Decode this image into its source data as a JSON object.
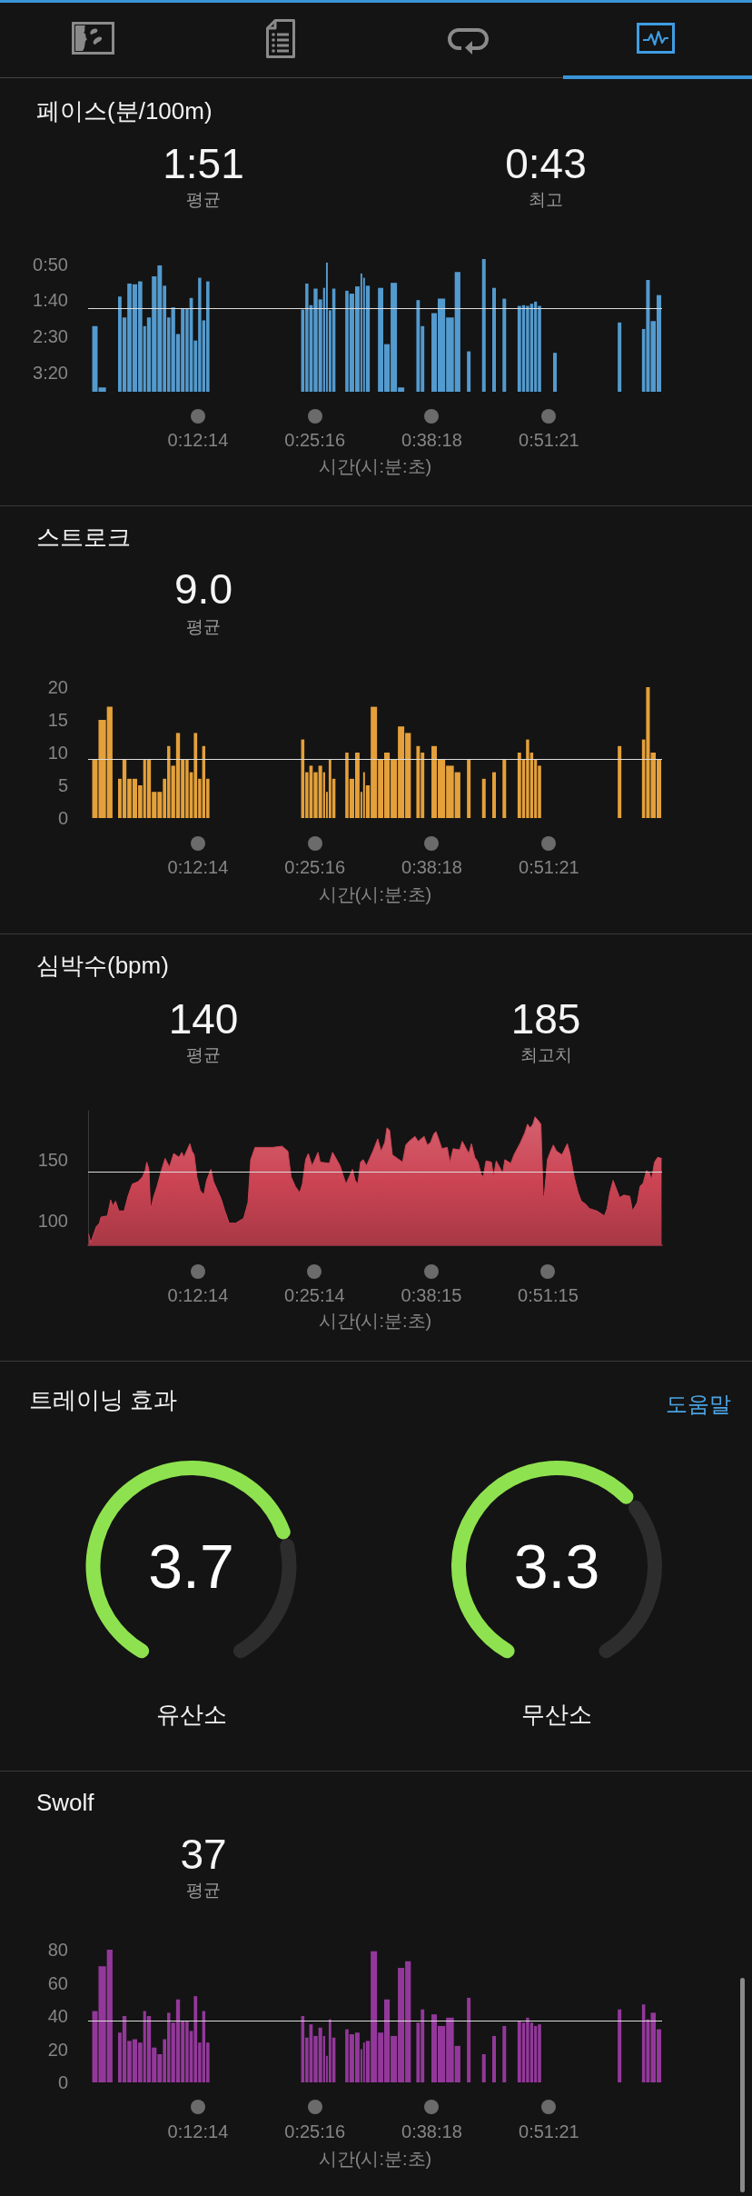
{
  "chart_data": [
    {
      "type": "bar",
      "title": "페이스(분/100m)",
      "xlabel": "시간(시:분:초)",
      "annotations": [
        "1:51",
        "평균",
        "0:43",
        "최고"
      ],
      "color": "#539ace",
      "x": [
        0.011,
        0.026,
        0.042,
        0.059,
        0.067,
        0.077,
        0.086,
        0.098,
        0.105,
        0.112,
        0.123,
        0.133,
        0.143,
        0.149,
        0.158,
        0.167,
        0.176,
        0.184,
        0.191,
        0.2,
        0.207,
        0.215,
        0.222,
        0.399,
        0.406,
        0.414,
        0.422,
        0.432,
        0.439,
        0.443,
        0.449,
        0.456,
        0.481,
        0.488,
        0.502,
        0.508,
        0.512,
        0.518,
        0.53,
        0.545,
        0.553,
        0.569,
        0.58,
        0.596,
        0.613,
        0.621,
        0.641,
        0.656,
        0.672,
        0.688,
        0.707,
        0.735,
        0.754,
        0.773,
        0.801,
        0.809,
        0.816,
        0.824,
        0.831,
        0.838,
        0.867,
        0.987,
        1.032,
        1.039,
        1.049,
        1.061
      ],
      "base": [
        227,
        227,
        null,
        227,
        227,
        227,
        227,
        227,
        227,
        227,
        227,
        227,
        227,
        227,
        227,
        227,
        227,
        227,
        227,
        227,
        227,
        227,
        227,
        227,
        227,
        227,
        227,
        227,
        227,
        227,
        227,
        227,
        227,
        227,
        227,
        227,
        227,
        227,
        null,
        227,
        227,
        227,
        227,
        null,
        227,
        227,
        227,
        227,
        227,
        227,
        227,
        227,
        227,
        227,
        227,
        227,
        227,
        227,
        227,
        227,
        227,
        227,
        227,
        227,
        227,
        227
      ],
      "values": [
        -91,
        -6,
        null,
        -132,
        -103,
        -150,
        -149,
        -153,
        -91,
        -103,
        -160,
        -175,
        -147,
        -103,
        -117,
        -80,
        -116,
        -116,
        -130,
        -71,
        -158,
        -99,
        -153,
        -114,
        -150,
        -120,
        -143,
        -128,
        -144,
        -179,
        -113,
        -143,
        -140,
        -136,
        -146,
        -164,
        -158,
        -147,
        null,
        -144,
        -66,
        -151,
        -6,
        null,
        -127,
        -91,
        -109,
        -129,
        -103,
        -166,
        -56,
        -184,
        -144,
        -129,
        -119,
        -120,
        -119,
        -122,
        -125,
        -119,
        -54,
        -96,
        -87,
        -155,
        -98,
        -134
      ],
      "xlim": [
        0,
        1.066
      ],
      "xticks": [
        {
          "value": 0.2039,
          "label": "0:12:14"
        },
        {
          "value": 0.4211,
          "label": "0:25:16"
        },
        {
          "value": 0.6383,
          "label": "0:38:18"
        },
        {
          "value": 0.8558,
          "label": "0:51:21"
        }
      ],
      "ylim": [
        227,
        38
      ],
      "yticks": [
        {
          "value": 50,
          "label": "0:50"
        },
        {
          "value": 100,
          "label": "1:40"
        },
        {
          "value": 150,
          "label": "2:30"
        },
        {
          "value": 200,
          "label": "3:20"
        }
      ],
      "ref_lines": [
        {
          "axis": "y",
          "value": 111
        }
      ]
    },
    {
      "type": "bar",
      "title": "스트로크",
      "xlabel": "시간(시:분:초)",
      "annotations": [
        "9.0",
        "평균"
      ],
      "color": "#e4a03a",
      "x": [
        0.011,
        0.026,
        0.042,
        0.059,
        0.067,
        0.077,
        0.086,
        0.098,
        0.105,
        0.112,
        0.123,
        0.133,
        0.143,
        0.149,
        0.158,
        0.167,
        0.176,
        0.184,
        0.191,
        0.2,
        0.207,
        0.215,
        0.222,
        0.399,
        0.406,
        0.414,
        0.422,
        0.432,
        0.439,
        0.443,
        0.449,
        0.456,
        0.481,
        0.488,
        0.502,
        0.508,
        0.512,
        0.518,
        0.53,
        0.545,
        0.553,
        0.569,
        0.58,
        0.596,
        0.613,
        0.621,
        0.641,
        0.656,
        0.672,
        0.688,
        0.707,
        0.735,
        0.754,
        0.773,
        0.801,
        0.809,
        0.816,
        0.824,
        0.831,
        0.838,
        0.867,
        0.987,
        1.032,
        1.039,
        1.049,
        1.061
      ],
      "values": [
        9,
        15,
        17,
        6,
        9,
        6,
        6,
        5,
        9,
        9,
        4,
        4,
        6,
        11,
        8,
        13,
        9,
        9,
        7,
        13,
        6,
        11,
        6,
        12,
        7,
        8,
        7,
        8,
        7,
        4,
        9,
        6,
        10,
        6,
        10,
        4,
        7,
        5,
        17,
        9,
        10,
        9,
        14,
        13,
        11,
        10,
        11,
        9,
        8,
        7,
        9,
        6,
        7,
        9,
        10,
        9,
        12,
        10,
        9,
        8,
        null,
        11,
        12,
        20,
        10,
        9
      ],
      "xlim": [
        0,
        1.066
      ],
      "xticks": [
        {
          "value": 0.2039,
          "label": "0:12:14"
        },
        {
          "value": 0.4211,
          "label": "0:25:16"
        },
        {
          "value": 0.6383,
          "label": "0:38:18"
        },
        {
          "value": 0.8558,
          "label": "0:51:21"
        }
      ],
      "ylim": [
        0,
        20
      ],
      "yticks": [
        0,
        5,
        10,
        15,
        20
      ],
      "ref_lines": [
        {
          "axis": "y",
          "value": 9
        }
      ]
    },
    {
      "type": "area",
      "title": "심박수(bpm)",
      "xlabel": "시간(시:분:초)",
      "annotations": [
        "140",
        "평균",
        "185",
        "최고치"
      ],
      "color": "#cc4454",
      "marker": "none",
      "x": [
        0.001,
        0.005,
        0.015,
        0.021,
        0.024,
        0.036,
        0.042,
        0.046,
        0.051,
        0.057,
        0.067,
        0.074,
        0.082,
        0.093,
        0.101,
        0.106,
        0.109,
        0.113,
        0.116,
        0.122,
        0.128,
        0.136,
        0.143,
        0.151,
        0.159,
        0.169,
        0.174,
        0.178,
        0.184,
        0.189,
        0.193,
        0.197,
        0.202,
        0.208,
        0.215,
        0.22,
        0.228,
        0.233,
        0.247,
        0.254,
        0.262,
        0.274,
        0.289,
        0.297,
        0.302,
        0.31,
        0.343,
        0.36,
        0.371,
        0.377,
        0.385,
        0.393,
        0.398,
        0.404,
        0.409,
        0.416,
        0.421,
        0.427,
        0.431,
        0.448,
        0.454,
        0.468,
        0.473,
        0.479,
        0.491,
        0.496,
        0.501,
        0.506,
        0.511,
        0.517,
        0.529,
        0.538,
        0.544,
        0.551,
        0.555,
        0.56,
        0.565,
        0.584,
        0.59,
        0.596,
        0.607,
        0.613,
        0.624,
        0.63,
        0.636,
        0.642,
        0.646,
        0.651,
        0.657,
        0.667,
        0.672,
        0.678,
        0.69,
        0.695,
        0.701,
        0.707,
        0.712,
        0.718,
        0.724,
        0.73,
        0.734,
        0.739,
        0.749,
        0.753,
        0.758,
        0.77,
        0.774,
        0.785,
        0.791,
        0.803,
        0.811,
        0.816,
        0.821,
        0.826,
        0.83,
        0.836,
        0.841,
        0.845,
        0.847,
        0.853,
        0.859,
        0.864,
        0.87,
        0.88,
        0.89,
        0.895,
        0.903,
        0.91,
        0.916,
        0.923,
        0.931,
        0.945,
        0.959,
        0.964,
        0.969,
        0.975,
        0.982,
        0.987,
        0.995,
        1.006,
        1.011,
        1.02,
        1.025,
        1.031,
        1.037,
        1.043,
        1.046,
        1.052,
        1.058,
        1.065
      ],
      "values": [
        89,
        82,
        95,
        98,
        103,
        104,
        117,
        112,
        116,
        108,
        108,
        120,
        130,
        132,
        136,
        141,
        148,
        142,
        109,
        120,
        128,
        141,
        151,
        144,
        155,
        152,
        156,
        152,
        158,
        163,
        157,
        154,
        136,
        125,
        121,
        133,
        142,
        132,
        118,
        108,
        98,
        98,
        102,
        115,
        150,
        160,
        160,
        161,
        157,
        136,
        128,
        123,
        130,
        150,
        155,
        145,
        150,
        156,
        148,
        147,
        156,
        145,
        138,
        130,
        142,
        133,
        130,
        148,
        150,
        145,
        157,
        167,
        157,
        164,
        176,
        174,
        154,
        148,
        162,
        165,
        169,
        165,
        169,
        162,
        164,
        171,
        173,
        167,
        159,
        160,
        148,
        159,
        158,
        165,
        160,
        155,
        163,
        152,
        148,
        138,
        136,
        149,
        148,
        136,
        149,
        139,
        150,
        147,
        154,
        164,
        172,
        179,
        176,
        179,
        185,
        182,
        179,
        121,
        119,
        150,
        157,
        162,
        157,
        154,
        163,
        155,
        135,
        123,
        116,
        114,
        110,
        108,
        104,
        110,
        123,
        133,
        125,
        119,
        121,
        120,
        108,
        115,
        128,
        131,
        141,
        139,
        133,
        148,
        152,
        151
      ],
      "xlim": [
        0,
        1.066
      ],
      "xticks": [
        {
          "value": 0.2039,
          "label": "0:12:14"
        },
        {
          "value": 0.4206,
          "label": "0:25:14"
        },
        {
          "value": 0.6375,
          "label": "0:38:15"
        },
        {
          "value": 0.8542,
          "label": "0:51:15"
        }
      ],
      "ylim": [
        80,
        190
      ],
      "yticks": [
        100,
        150
      ],
      "ref_lines": [
        {
          "axis": "y",
          "value": 140
        }
      ]
    },
    {
      "type": "other",
      "title": "트레이닝 효과",
      "annotations": [
        "도움말"
      ]
    },
    {
      "type": "donut",
      "title": "유산소",
      "categories": [
        null,
        null
      ],
      "values": [
        74,
        26
      ],
      "colors": [
        "#8fe24f",
        "#2d2d2d"
      ],
      "annotations": [
        "3.7"
      ]
    },
    {
      "type": "donut",
      "title": "무산소",
      "categories": [
        null,
        null
      ],
      "values": [
        66,
        34
      ],
      "colors": [
        "#8fe24f",
        "#2d2d2d"
      ],
      "annotations": [
        "3.3"
      ]
    },
    {
      "type": "bar",
      "title": "Swolf",
      "xlabel": "시간(시:분:초)",
      "annotations": [
        "37",
        "평균"
      ],
      "color": "#93389a",
      "x": [
        0.011,
        0.026,
        0.042,
        0.059,
        0.067,
        0.077,
        0.086,
        0.098,
        0.105,
        0.112,
        0.123,
        0.133,
        0.143,
        0.149,
        0.158,
        0.167,
        0.176,
        0.184,
        0.191,
        0.2,
        0.207,
        0.215,
        0.222,
        0.399,
        0.406,
        0.414,
        0.422,
        0.432,
        0.439,
        0.443,
        0.449,
        0.456,
        0.481,
        0.488,
        0.502,
        0.508,
        0.512,
        0.518,
        0.53,
        0.545,
        0.553,
        0.569,
        0.58,
        0.596,
        0.613,
        0.621,
        0.641,
        0.656,
        0.672,
        0.688,
        0.707,
        0.735,
        0.754,
        0.773,
        0.801,
        0.809,
        0.816,
        0.824,
        0.831,
        0.838,
        0.867,
        0.987,
        1.032,
        1.039,
        1.049,
        1.061
      ],
      "values": [
        43,
        70,
        80,
        30,
        40,
        25,
        26,
        24,
        43,
        40,
        21,
        17,
        26,
        42,
        36,
        50,
        37,
        37,
        31,
        52,
        24,
        43,
        24,
        40,
        27,
        35,
        28,
        33,
        28,
        16,
        38,
        27,
        32,
        29,
        30,
        20,
        24,
        25,
        79,
        30,
        50,
        28,
        69,
        73,
        36,
        44,
        41,
        34,
        39,
        22,
        51,
        17,
        28,
        34,
        37,
        36,
        39,
        36,
        34,
        35,
        null,
        44,
        47,
        38,
        42,
        32
      ],
      "xlim": [
        0,
        1.066
      ],
      "xticks": [
        {
          "value": 0.2039,
          "label": "0:12:14"
        },
        {
          "value": 0.4211,
          "label": "0:25:16"
        },
        {
          "value": 0.6383,
          "label": "0:38:18"
        },
        {
          "value": 0.8558,
          "label": "0:51:21"
        }
      ],
      "ylim": [
        0,
        80
      ],
      "yticks": [
        0,
        20,
        40,
        60,
        80
      ],
      "ref_lines": [
        {
          "axis": "y",
          "value": 37
        }
      ]
    }
  ]
}
